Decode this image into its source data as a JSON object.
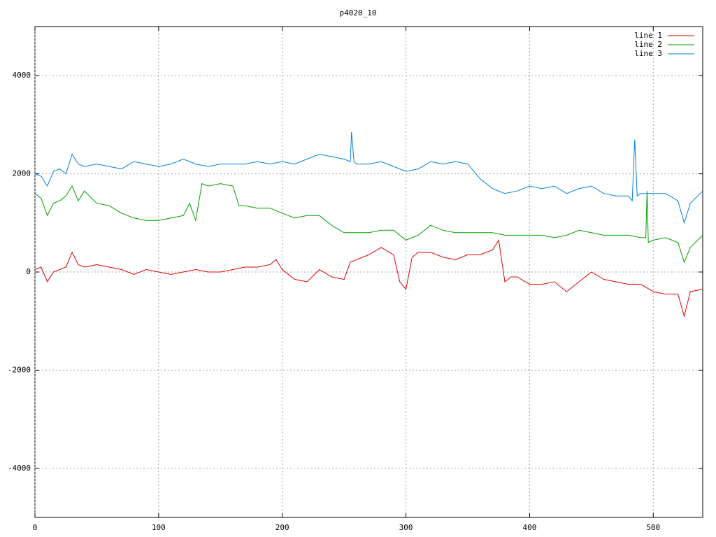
{
  "chart_data": {
    "type": "line",
    "title": "p4020_10",
    "xlim": [
      0,
      540
    ],
    "xticks": [
      0,
      100,
      200,
      300,
      400,
      500
    ],
    "ylim": [
      -5000,
      5000
    ],
    "yticks": [
      -4000,
      -2000,
      0,
      2000,
      4000
    ],
    "grid": true,
    "legend": "top-right",
    "series": [
      {
        "name": "line 1",
        "color": "#dd0000",
        "x": [
          0,
          5,
          10,
          15,
          20,
          25,
          30,
          35,
          40,
          50,
          60,
          70,
          80,
          90,
          100,
          110,
          120,
          130,
          140,
          150,
          160,
          170,
          180,
          190,
          195,
          200,
          210,
          220,
          230,
          240,
          250,
          255,
          260,
          270,
          280,
          290,
          295,
          300,
          305,
          310,
          320,
          330,
          340,
          350,
          360,
          370,
          375,
          380,
          385,
          390,
          400,
          410,
          420,
          430,
          440,
          450,
          460,
          470,
          480,
          490,
          500,
          510,
          520,
          525,
          530,
          540
        ],
        "values": [
          50,
          100,
          -200,
          0,
          50,
          100,
          400,
          150,
          100,
          150,
          100,
          50,
          -50,
          50,
          0,
          -50,
          0,
          50,
          0,
          0,
          50,
          100,
          100,
          150,
          250,
          50,
          -150,
          -200,
          50,
          -100,
          -150,
          200,
          250,
          350,
          500,
          350,
          -200,
          -350,
          300,
          400,
          400,
          300,
          250,
          350,
          350,
          450,
          650,
          -200,
          -100,
          -100,
          -250,
          -250,
          -200,
          -400,
          -200,
          0,
          -150,
          -200,
          -250,
          -250,
          -400,
          -450,
          -450,
          -900,
          -400,
          -350
        ]
      },
      {
        "name": "line 2",
        "color": "#00a000",
        "x": [
          0,
          5,
          10,
          15,
          20,
          25,
          30,
          35,
          40,
          50,
          60,
          70,
          80,
          90,
          100,
          110,
          120,
          125,
          130,
          135,
          140,
          150,
          160,
          165,
          170,
          180,
          190,
          200,
          210,
          220,
          230,
          240,
          250,
          260,
          270,
          280,
          290,
          300,
          310,
          320,
          330,
          340,
          350,
          360,
          370,
          380,
          390,
          400,
          410,
          420,
          430,
          440,
          450,
          460,
          470,
          480,
          490,
          494,
          495,
          496,
          500,
          510,
          520,
          525,
          530,
          540
        ],
        "values": [
          1600,
          1500,
          1150,
          1400,
          1450,
          1550,
          1750,
          1450,
          1650,
          1400,
          1350,
          1200,
          1100,
          1050,
          1050,
          1100,
          1150,
          1400,
          1050,
          1800,
          1750,
          1800,
          1750,
          1350,
          1350,
          1300,
          1300,
          1200,
          1100,
          1150,
          1150,
          950,
          800,
          800,
          800,
          850,
          850,
          650,
          750,
          950,
          850,
          800,
          800,
          800,
          800,
          750,
          750,
          750,
          750,
          700,
          750,
          850,
          800,
          750,
          750,
          750,
          700,
          700,
          1650,
          600,
          650,
          700,
          600,
          200,
          500,
          750
        ]
      },
      {
        "name": "line 3",
        "color": "#0080e0",
        "x": [
          0,
          5,
          10,
          15,
          20,
          25,
          30,
          35,
          40,
          50,
          60,
          70,
          80,
          90,
          100,
          110,
          120,
          130,
          140,
          150,
          160,
          170,
          180,
          190,
          200,
          210,
          220,
          230,
          240,
          250,
          255,
          256,
          258,
          260,
          270,
          280,
          290,
          300,
          310,
          320,
          330,
          340,
          350,
          360,
          370,
          380,
          390,
          400,
          410,
          420,
          430,
          440,
          450,
          460,
          470,
          480,
          483,
          485,
          487,
          490,
          500,
          510,
          520,
          525,
          530,
          540
        ],
        "values": [
          2000,
          1950,
          1750,
          2050,
          2100,
          2000,
          2400,
          2200,
          2150,
          2200,
          2150,
          2100,
          2250,
          2200,
          2150,
          2200,
          2300,
          2200,
          2150,
          2200,
          2200,
          2200,
          2250,
          2200,
          2250,
          2200,
          2300,
          2400,
          2350,
          2300,
          2250,
          2850,
          2250,
          2200,
          2200,
          2250,
          2150,
          2050,
          2100,
          2250,
          2200,
          2250,
          2200,
          1900,
          1700,
          1600,
          1650,
          1750,
          1700,
          1750,
          1600,
          1700,
          1750,
          1600,
          1550,
          1550,
          1450,
          2700,
          1550,
          1600,
          1600,
          1600,
          1450,
          1000,
          1400,
          1650
        ]
      }
    ]
  }
}
